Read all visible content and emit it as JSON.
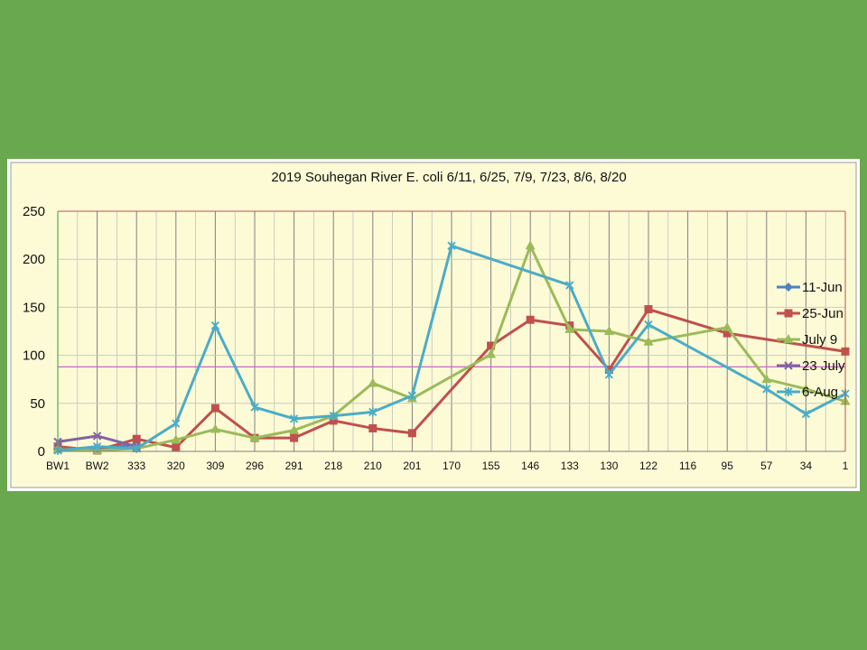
{
  "chart_data": {
    "type": "line",
    "title": "2019 Souhegan River E. coli 6/11, 6/25, 7/9, 7/23, 8/6, 8/20",
    "xlabel": "",
    "ylabel": "",
    "categories": [
      "BW1",
      "BW2",
      "333",
      "320",
      "309",
      "296",
      "291",
      "218",
      "210",
      "201",
      "170",
      "155",
      "146",
      "133",
      "130",
      "122",
      "116",
      "95",
      "57",
      "34",
      "1"
    ],
    "ylim": [
      0,
      250
    ],
    "yticks": [
      0,
      50,
      100,
      150,
      200,
      250
    ],
    "reference_line": 88,
    "grid": true,
    "legend_position": "right",
    "colors": {
      "background": "#6aa84f",
      "plot_background": "#fdfbd6",
      "plot_border": "#c0504d",
      "reference_line": "#cc66cc",
      "gridline": "#808080"
    },
    "series": [
      {
        "name": "11-Jun",
        "color": "#4f81bd",
        "marker": "diamond",
        "values": [
          2,
          3,
          7,
          null,
          null,
          null,
          null,
          null,
          null,
          null,
          null,
          null,
          null,
          null,
          null,
          null,
          null,
          null,
          null,
          null,
          null
        ]
      },
      {
        "name": "25-Jun",
        "color": "#c0504d",
        "marker": "square",
        "values": [
          5,
          1,
          13,
          4,
          45,
          14,
          14,
          32,
          24,
          19,
          null,
          110,
          137,
          131,
          85,
          148,
          null,
          123,
          null,
          null,
          104
        ]
      },
      {
        "name": "July 9",
        "color": "#9bbb59",
        "marker": "triangle",
        "values": [
          2,
          1,
          3,
          12,
          23,
          14,
          22,
          37,
          71,
          55,
          null,
          101,
          214,
          127,
          125,
          114,
          null,
          129,
          75,
          65,
          52
        ]
      },
      {
        "name": "23 July",
        "color": "#8064a2",
        "marker": "x",
        "values": [
          10,
          16,
          5,
          null,
          null,
          null,
          null,
          null,
          null,
          null,
          null,
          null,
          null,
          null,
          null,
          null,
          null,
          null,
          null,
          null,
          null
        ]
      },
      {
        "name": "6-Aug",
        "color": "#4bacc6",
        "marker": "star",
        "values": [
          1,
          5,
          3,
          29,
          131,
          46,
          34,
          37,
          41,
          58,
          214,
          null,
          null,
          173,
          80,
          132,
          null,
          null,
          65,
          39,
          60
        ]
      }
    ]
  }
}
